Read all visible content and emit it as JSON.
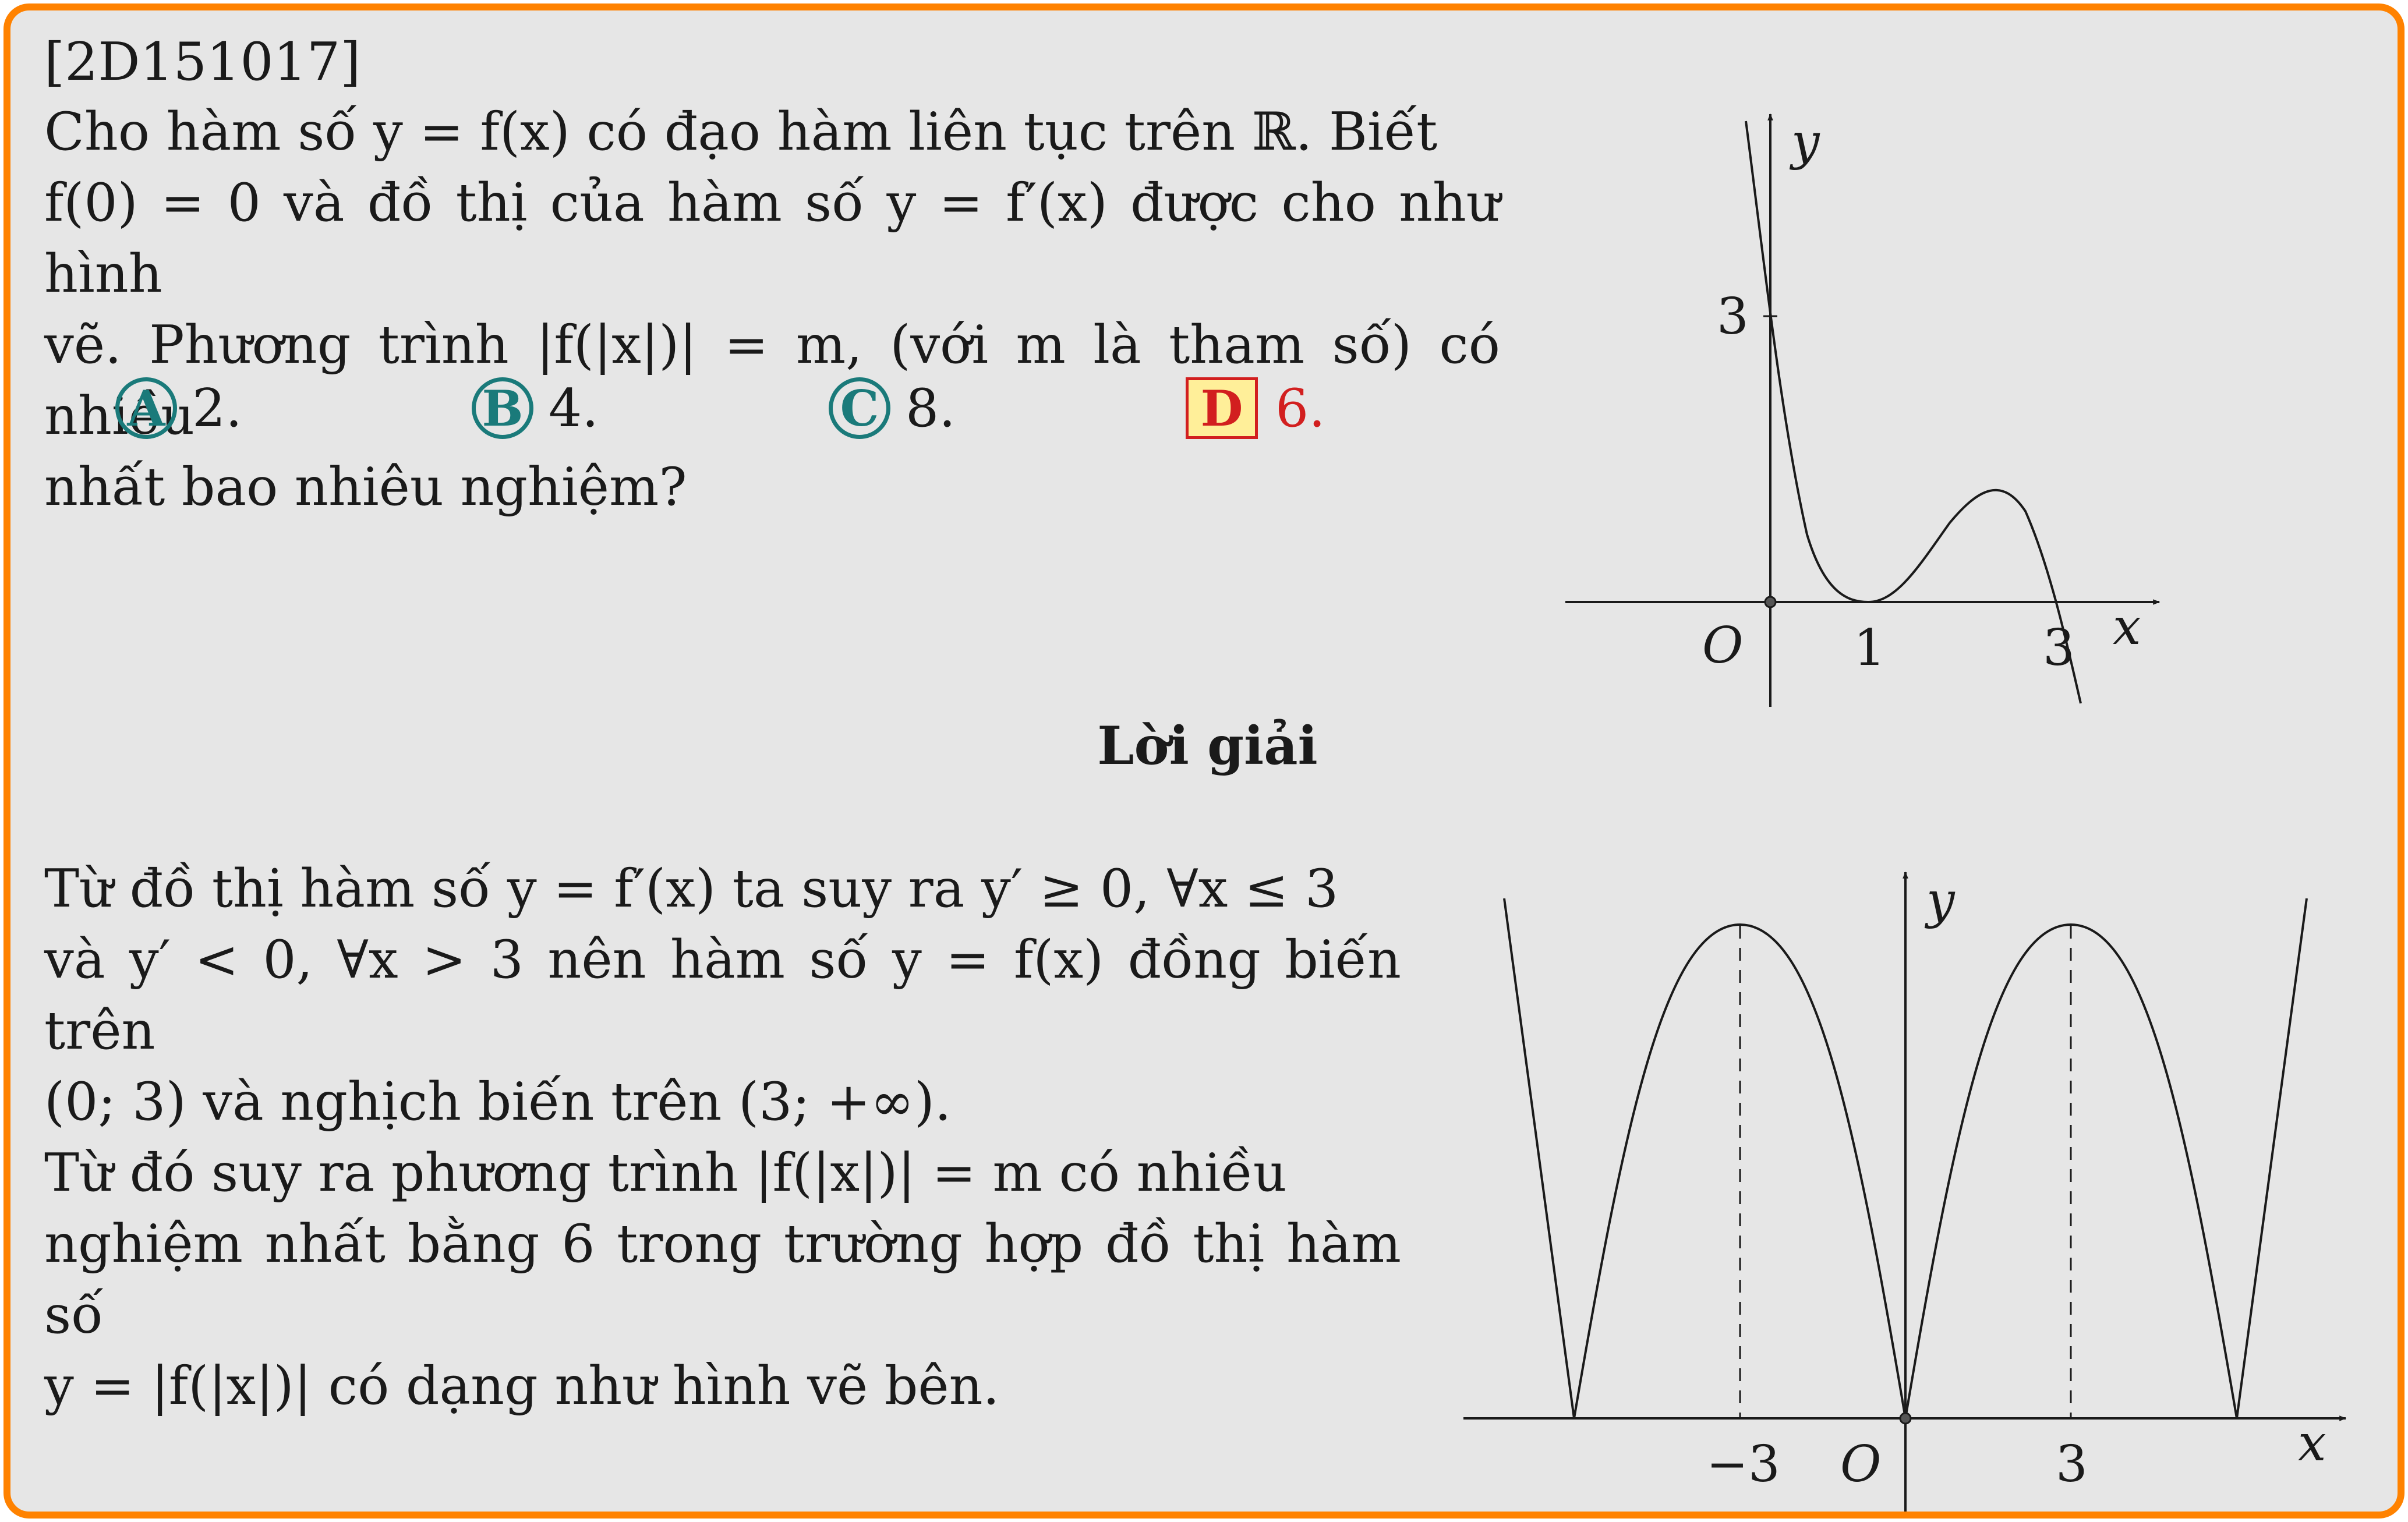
{
  "problem": {
    "id": "[2D151017]",
    "question_line1": "Cho hàm số y = f(x) có đạo hàm liên tục trên ℝ. Biết",
    "question_line2": "f(0) = 0 và đồ thị của hàm số y = f′(x) được cho như hình",
    "question_line3": "vẽ. Phương trình |f(|x|)| = m, (với m là tham số) có nhiều",
    "question_line4": "nhất bao nhiêu nghiệm?"
  },
  "choices": [
    {
      "letter": "A",
      "value": "2."
    },
    {
      "letter": "B",
      "value": "4."
    },
    {
      "letter": "C",
      "value": "8."
    },
    {
      "letter": "D",
      "value": "6.",
      "correct": true
    }
  ],
  "graph1": {
    "y_label": "y",
    "x_label": "x",
    "origin_label": "O",
    "y_tick": "3",
    "x_ticks": [
      "1",
      "3"
    ]
  },
  "solution": {
    "heading": "Lời giải",
    "line1": "Từ đồ thị hàm số y = f′(x) ta suy ra y′ ≥ 0, ∀x ≤ 3",
    "line2": "và y′ < 0, ∀x > 3 nên hàm số y = f(x) đồng biến trên",
    "line3": "(0; 3) và nghịch biến trên (3; +∞).",
    "line4": "Từ đó suy ra phương trình |f(|x|)| = m có nhiều",
    "line5": "nghiệm nhất bằng 6 trong trường hợp đồ thị hàm số",
    "line6": "y = |f(|x|)| có dạng như hình vẽ bên."
  },
  "graph2": {
    "y_label": "y",
    "x_label": "x",
    "origin_label": "O",
    "x_ticks": [
      "−3",
      "3"
    ]
  },
  "colors": {
    "border": "#ff8200",
    "background": "#e6e6e6",
    "choice_circle": "#1a7a7a",
    "correct": "#d21f1f",
    "correct_fill": "#ffef99"
  }
}
